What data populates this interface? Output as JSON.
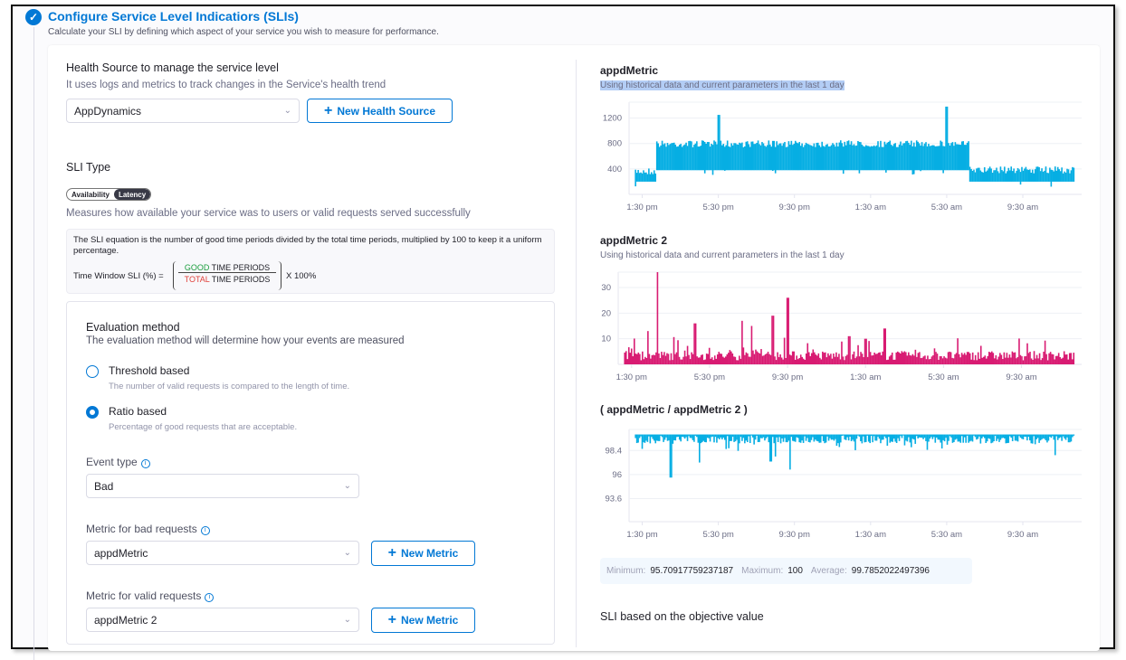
{
  "header": {
    "title": "Configure Service Level Indicatiors (SLIs)",
    "subtitle": "Calculate your SLI by defining which aspect of your service you wish to measure for performance."
  },
  "health_source": {
    "label": "Health Source to manage the service level",
    "help": "It uses logs and metrics to track changes in the Service's health trend",
    "selected": "AppDynamics",
    "new_button": "New Health Source"
  },
  "sli_type": {
    "label": "SLI Type",
    "options": [
      "Availability",
      "Latency"
    ],
    "active": "Latency",
    "description": "Measures how available your service was to users or valid requests served successfully"
  },
  "equation": {
    "text": "The SLI equation is the number of good time periods divided by the total time periods, multiplied by 100 to keep it a uniform percentage.",
    "lhs": "Time Window SLI (%) =",
    "good": "GOOD",
    "total": "TOTAL",
    "periods": "TIME PERIODS",
    "multiplier": "X 100%",
    "good_color": "#1b9e3e",
    "total_color": "#e0403a"
  },
  "evaluation": {
    "label": "Evaluation method",
    "help": "The evaluation method will determine how your events are measured",
    "options": [
      {
        "label": "Threshold based",
        "help": "The number of valid requests is compared to the length of time.",
        "selected": false
      },
      {
        "label": "Ratio based",
        "help": "Percentage of good requests that are acceptable.",
        "selected": true
      }
    ],
    "event_type_label": "Event type",
    "event_type": "Bad",
    "bad_metric_label": "Metric for bad requests",
    "bad_metric": "appdMetric",
    "valid_metric_label": "Metric for valid requests",
    "valid_metric": "appdMetric 2",
    "new_metric": "New Metric"
  },
  "chart_data": [
    {
      "type": "area",
      "title": "appdMetric",
      "subtitle": "Using historical data and current parameters in the last 1 day",
      "color": "#06aee3",
      "xticks": [
        "1:30 pm",
        "5:30 pm",
        "9:30 pm",
        "1:30 am",
        "5:30 am",
        "9:30 am"
      ],
      "yticks": [
        400,
        800,
        1200
      ],
      "ylim": [
        0,
        1450
      ],
      "segments": [
        {
          "from": "1:00 pm",
          "to": "2:15 pm",
          "low": 200,
          "high": 420
        },
        {
          "from": "2:15 pm",
          "to": "6:40 am",
          "low": 380,
          "high": 850
        },
        {
          "from": "6:40 am",
          "to": "12:20 pm",
          "low": 200,
          "high": 440
        }
      ],
      "peaks": [
        {
          "x": "5:30 pm",
          "y": 1250
        },
        {
          "x": "5:30 am",
          "y": 1380
        }
      ]
    },
    {
      "type": "bar",
      "title": "appdMetric 2",
      "subtitle": "Using historical data and current parameters in the last 1 day",
      "color": "#d81b72",
      "xticks": [
        "1:30 pm",
        "5:30 pm",
        "9:30 pm",
        "1:30 am",
        "5:30 am",
        "9:30 am"
      ],
      "yticks": [
        10,
        20,
        30
      ],
      "ylim": [
        0,
        36
      ],
      "peaks": [
        {
          "x": "2:50 pm",
          "y": 36
        },
        {
          "x": "2:20 pm",
          "y": 13
        },
        {
          "x": "4:45 pm",
          "y": 16
        },
        {
          "x": "7:10 pm",
          "y": 17
        },
        {
          "x": "7:40 pm",
          "y": 15
        },
        {
          "x": "8:45 pm",
          "y": 19
        },
        {
          "x": "9:30 pm",
          "y": 26
        },
        {
          "x": "12:40 am",
          "y": 11
        },
        {
          "x": "2:30 am",
          "y": 14
        },
        {
          "x": "1:30 am",
          "y": 10
        }
      ],
      "baseline": 4
    },
    {
      "type": "bar",
      "title": "( appdMetric / appdMetric 2 )",
      "color": "#06aee3",
      "xticks": [
        "1:30 pm",
        "5:30 pm",
        "9:30 pm",
        "1:30 am",
        "5:30 am",
        "9:30 am"
      ],
      "yticks": [
        93.6,
        96,
        98.4
      ],
      "ylim": [
        91.3,
        100.5
      ],
      "dips": [
        {
          "x": "3:00 pm",
          "y": 95.7
        },
        {
          "x": "4:30 pm",
          "y": 97.2
        },
        {
          "x": "8:15 pm",
          "y": 97.3
        },
        {
          "x": "9:15 pm",
          "y": 96.5
        },
        {
          "x": "8:30 pm",
          "y": 97.8
        }
      ],
      "stats": {
        "min_label": "Minimum:",
        "min": "95.70917759237187",
        "max_label": "Maximum:",
        "max": "100",
        "avg_label": "Average:",
        "avg": "99.7852022497396"
      }
    }
  ],
  "objective": {
    "label": "SLI based on the objective value"
  }
}
